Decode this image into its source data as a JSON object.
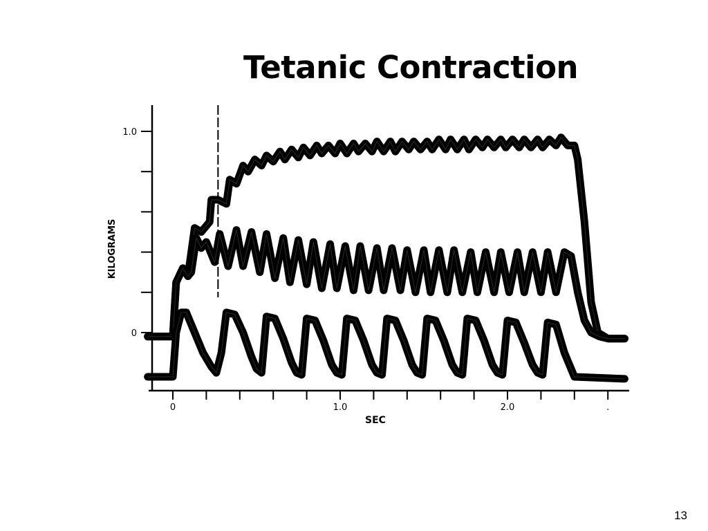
{
  "slide": {
    "title": "Tetanic Contraction",
    "page_number": "13"
  },
  "chart_data": {
    "type": "line",
    "title": "",
    "xlabel": "SEC",
    "ylabel": "KILOGRAMS",
    "xlim": [
      -0.15,
      2.7
    ],
    "ylim": [
      -0.27,
      1.1
    ],
    "x_ticks": [
      0,
      0.2,
      0.4,
      0.6,
      0.8,
      1.0,
      1.2,
      1.4,
      1.6,
      1.8,
      2.0,
      2.2,
      2.4,
      2.6
    ],
    "x_tick_labels": [
      "0",
      "",
      "",
      "",
      "",
      "1.0",
      "",
      "",
      "",
      "",
      "2.0",
      "",
      "",
      "."
    ],
    "y_ticks": [
      0,
      0.2,
      0.4,
      0.6,
      0.8,
      1.0
    ],
    "y_tick_labels": [
      "0",
      "",
      "",
      "",
      "",
      "1.0"
    ],
    "stimulus_marker_x": 0.27,
    "grid": false,
    "legend": "none",
    "series": [
      {
        "x": [
          -0.15,
          0.0,
          0.02,
          0.06,
          0.09,
          0.13,
          0.17,
          0.22,
          0.23,
          0.27,
          0.32,
          0.34,
          0.38,
          0.42,
          0.45,
          0.49,
          0.53,
          0.56,
          0.6,
          0.64,
          0.67,
          0.71,
          0.75,
          0.78,
          0.82,
          0.86,
          0.89,
          0.93,
          0.97,
          1.0,
          1.04,
          1.08,
          1.11,
          1.15,
          1.19,
          1.22,
          1.26,
          1.3,
          1.33,
          1.37,
          1.41,
          1.44,
          1.48,
          1.52,
          1.55,
          1.59,
          1.63,
          1.66,
          1.7,
          1.74,
          1.77,
          1.81,
          1.85,
          1.88,
          1.92,
          1.96,
          1.99,
          2.03,
          2.07,
          2.1,
          2.14,
          2.18,
          2.21,
          2.25,
          2.29,
          2.32,
          2.36,
          2.4,
          2.42,
          2.46,
          2.5,
          2.54,
          2.6,
          2.7
        ],
        "values": [
          -0.02,
          -0.02,
          0.25,
          0.32,
          0.28,
          0.52,
          0.5,
          0.55,
          0.66,
          0.66,
          0.64,
          0.76,
          0.74,
          0.83,
          0.8,
          0.86,
          0.83,
          0.88,
          0.85,
          0.9,
          0.86,
          0.91,
          0.87,
          0.92,
          0.88,
          0.93,
          0.89,
          0.93,
          0.89,
          0.94,
          0.89,
          0.94,
          0.9,
          0.94,
          0.9,
          0.95,
          0.9,
          0.95,
          0.9,
          0.95,
          0.91,
          0.95,
          0.91,
          0.95,
          0.91,
          0.96,
          0.91,
          0.96,
          0.91,
          0.96,
          0.91,
          0.96,
          0.92,
          0.96,
          0.92,
          0.96,
          0.92,
          0.96,
          0.92,
          0.96,
          0.92,
          0.96,
          0.92,
          0.96,
          0.93,
          0.97,
          0.93,
          0.93,
          0.86,
          0.55,
          0.15,
          0.0,
          -0.03,
          -0.03
        ]
      },
      {
        "x": [
          -0.15,
          0.0,
          0.02,
          0.06,
          0.09,
          0.11,
          0.14,
          0.17,
          0.2,
          0.25,
          0.28,
          0.33,
          0.38,
          0.42,
          0.47,
          0.52,
          0.56,
          0.61,
          0.66,
          0.7,
          0.75,
          0.8,
          0.84,
          0.89,
          0.94,
          0.98,
          1.03,
          1.08,
          1.12,
          1.17,
          1.22,
          1.26,
          1.31,
          1.36,
          1.4,
          1.45,
          1.5,
          1.54,
          1.59,
          1.64,
          1.68,
          1.73,
          1.78,
          1.82,
          1.87,
          1.92,
          1.96,
          2.01,
          2.06,
          2.1,
          2.15,
          2.2,
          2.24,
          2.29,
          2.34,
          2.38,
          2.42,
          2.46,
          2.5,
          2.55,
          2.6,
          2.7
        ],
        "values": [
          -0.02,
          -0.02,
          0.25,
          0.32,
          0.28,
          0.3,
          0.47,
          0.42,
          0.45,
          0.35,
          0.49,
          0.33,
          0.51,
          0.33,
          0.5,
          0.3,
          0.49,
          0.27,
          0.47,
          0.25,
          0.46,
          0.24,
          0.45,
          0.22,
          0.44,
          0.22,
          0.43,
          0.21,
          0.43,
          0.21,
          0.42,
          0.21,
          0.42,
          0.21,
          0.41,
          0.2,
          0.41,
          0.2,
          0.41,
          0.2,
          0.41,
          0.2,
          0.4,
          0.2,
          0.4,
          0.2,
          0.4,
          0.2,
          0.4,
          0.2,
          0.4,
          0.2,
          0.4,
          0.2,
          0.4,
          0.38,
          0.2,
          0.06,
          0.0,
          -0.02,
          -0.03,
          -0.03
        ]
      },
      {
        "x": [
          -0.15,
          0.0,
          0.02,
          0.05,
          0.08,
          0.13,
          0.18,
          0.23,
          0.26,
          0.29,
          0.32,
          0.37,
          0.42,
          0.47,
          0.5,
          0.53,
          0.56,
          0.61,
          0.66,
          0.71,
          0.74,
          0.77,
          0.8,
          0.85,
          0.9,
          0.95,
          0.98,
          1.01,
          1.04,
          1.09,
          1.14,
          1.19,
          1.22,
          1.25,
          1.28,
          1.33,
          1.38,
          1.43,
          1.46,
          1.49,
          1.52,
          1.57,
          1.62,
          1.67,
          1.7,
          1.73,
          1.76,
          1.81,
          1.86,
          1.91,
          1.94,
          1.97,
          2.0,
          2.05,
          2.1,
          2.15,
          2.18,
          2.21,
          2.24,
          2.29,
          2.34,
          2.4,
          2.7
        ],
        "values": [
          -0.22,
          -0.22,
          0.0,
          0.1,
          0.1,
          0.0,
          -0.1,
          -0.17,
          -0.2,
          -0.1,
          0.1,
          0.09,
          0.0,
          -0.12,
          -0.18,
          -0.2,
          0.08,
          0.07,
          -0.03,
          -0.15,
          -0.2,
          -0.21,
          0.07,
          0.06,
          -0.04,
          -0.16,
          -0.2,
          -0.21,
          0.07,
          0.06,
          -0.04,
          -0.16,
          -0.2,
          -0.21,
          0.07,
          0.06,
          -0.04,
          -0.16,
          -0.2,
          -0.21,
          0.07,
          0.06,
          -0.04,
          -0.16,
          -0.2,
          -0.21,
          0.07,
          0.06,
          -0.04,
          -0.16,
          -0.2,
          -0.21,
          0.06,
          0.05,
          -0.05,
          -0.16,
          -0.2,
          -0.21,
          0.05,
          0.04,
          -0.1,
          -0.22,
          -0.23
        ]
      }
    ]
  }
}
